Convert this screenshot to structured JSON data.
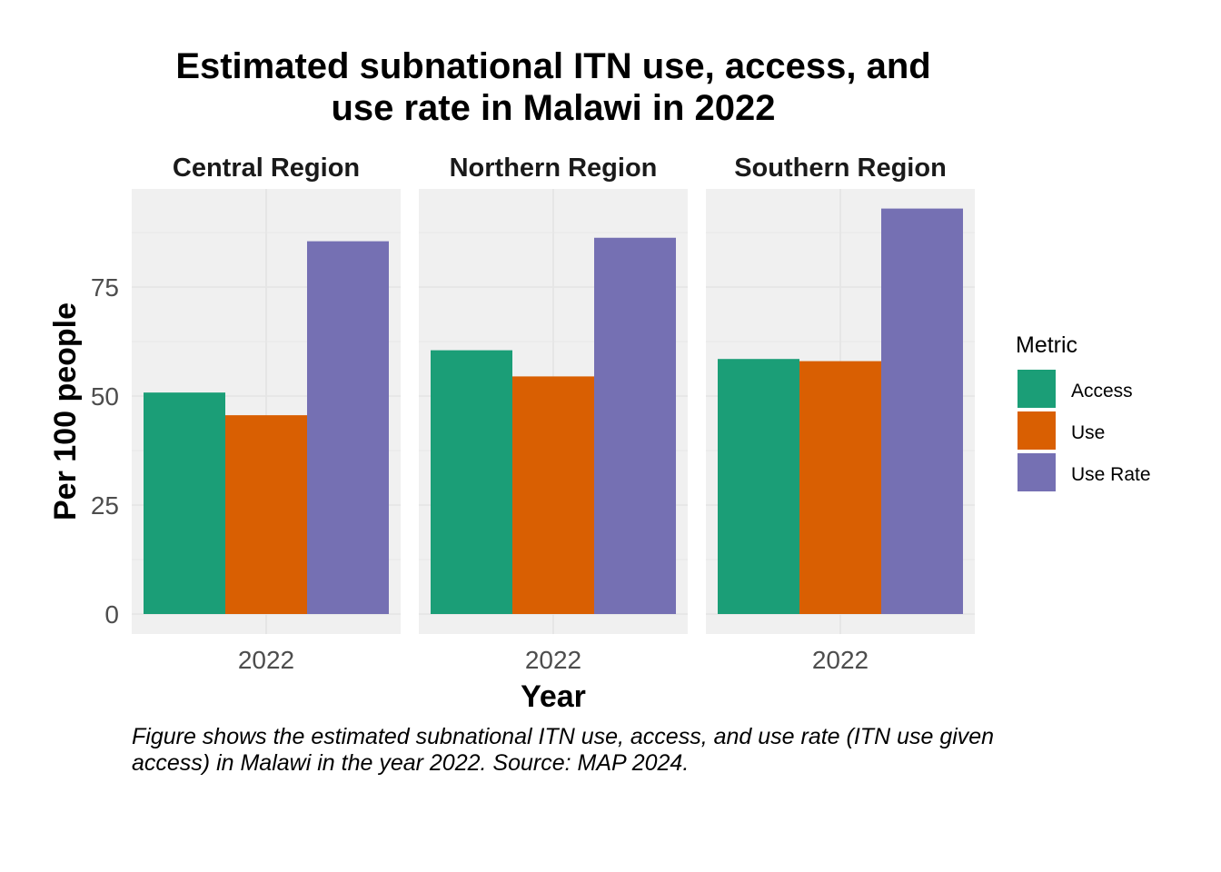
{
  "chart_data": {
    "type": "bar",
    "title_lines": [
      "Estimated subnational ITN use, access, and",
      "use rate in Malawi in 2022"
    ],
    "xlabel": "Year",
    "ylabel": "Per 100 people",
    "ylim": [
      0,
      95
    ],
    "yticks": [
      0,
      25,
      50,
      75
    ],
    "grid": true,
    "legend": {
      "title": "Metric",
      "placement": "right",
      "entries": [
        {
          "name": "Access",
          "color": "#1b9e77"
        },
        {
          "name": "Use",
          "color": "#d95f02"
        },
        {
          "name": "Use Rate",
          "color": "#7570b3"
        }
      ]
    },
    "facets": [
      {
        "name": "Central Region",
        "category": "2022",
        "values": {
          "Access": 50.8,
          "Use": 45.6,
          "Use Rate": 85.5
        }
      },
      {
        "name": "Northern Region",
        "category": "2022",
        "values": {
          "Access": 60.5,
          "Use": 54.5,
          "Use Rate": 86.3
        }
      },
      {
        "name": "Southern Region",
        "category": "2022",
        "values": {
          "Access": 58.5,
          "Use": 58.0,
          "Use Rate": 93.0
        }
      }
    ],
    "caption_lines": [
      "Figure shows the estimated subnational ITN use, access, and use rate (ITN use given",
      "access) in Malawi in the year 2022. Source: MAP 2024."
    ]
  }
}
